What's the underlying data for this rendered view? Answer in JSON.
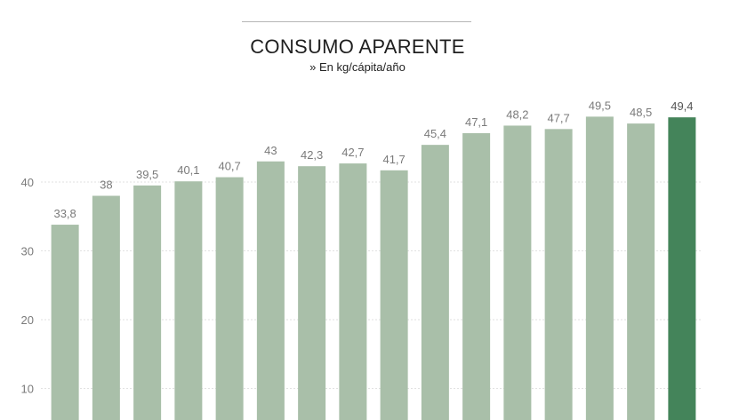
{
  "chart_data": {
    "type": "bar",
    "title": "CONSUMO APARENTE",
    "subtitle": "» En kg/cápita/año",
    "xlabel": "",
    "ylabel": "",
    "ylim": [
      0,
      50
    ],
    "yticks": [
      10,
      20,
      30,
      40
    ],
    "grid": true,
    "values": [
      33.8,
      38,
      39.5,
      40.1,
      40.7,
      43,
      42.3,
      42.7,
      41.7,
      45.4,
      47.1,
      48.2,
      47.7,
      49.5,
      48.5,
      49.4
    ],
    "value_labels": [
      "33,8",
      "38",
      "39,5",
      "40,1",
      "40,7",
      "43",
      "42,3",
      "42,7",
      "41,7",
      "45,4",
      "47,1",
      "48,2",
      "47,7",
      "49,5",
      "48,5",
      "49,4"
    ],
    "highlight_index": 15,
    "colors": {
      "bar": "#a9bfa9",
      "highlight": "#44845a",
      "label": "#7a7a7a",
      "grid": "#e2e2e2"
    }
  }
}
